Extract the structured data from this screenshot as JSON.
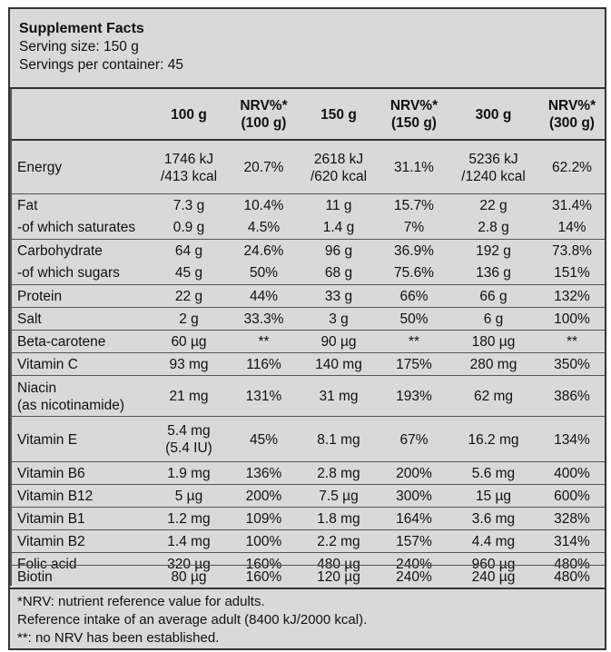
{
  "header": {
    "title": "Supplement Facts",
    "serving_size": "Serving size: 150 g",
    "servings_per_container": "Servings per container: 45"
  },
  "columns": [
    [
      "100 g"
    ],
    [
      "NRV%*",
      "(100 g)"
    ],
    [
      "150 g"
    ],
    [
      "NRV%*",
      "(150 g)"
    ],
    [
      "300 g"
    ],
    [
      "NRV%*",
      "(300 g)"
    ]
  ],
  "rows": [
    {
      "name": [
        "Energy"
      ],
      "values": [
        [
          "1746 kJ",
          "/413 kcal"
        ],
        [
          "20.7%"
        ],
        [
          "2618 kJ",
          "/620 kcal"
        ],
        [
          "31.1%"
        ],
        [
          "5236 kJ",
          "/1240 kcal"
        ],
        [
          "62.2%"
        ]
      ]
    },
    {
      "name": [
        "Fat"
      ],
      "values": [
        [
          "7.3 g"
        ],
        [
          "10.4%"
        ],
        [
          "11 g"
        ],
        [
          "15.7%"
        ],
        [
          "22 g"
        ],
        [
          "31.4%"
        ]
      ]
    },
    {
      "name": [
        "-of which saturates"
      ],
      "values": [
        [
          "0.9 g"
        ],
        [
          "4.5%"
        ],
        [
          "1.4 g"
        ],
        [
          "7%"
        ],
        [
          "2.8 g"
        ],
        [
          "14%"
        ]
      ]
    },
    {
      "name": [
        "Carbohydrate"
      ],
      "values": [
        [
          "64 g"
        ],
        [
          "24.6%"
        ],
        [
          "96 g"
        ],
        [
          "36.9%"
        ],
        [
          "192 g"
        ],
        [
          "73.8%"
        ]
      ]
    },
    {
      "name": [
        "-of which sugars"
      ],
      "values": [
        [
          "45 g"
        ],
        [
          "50%"
        ],
        [
          "68 g"
        ],
        [
          "75.6%"
        ],
        [
          "136 g"
        ],
        [
          "151%"
        ]
      ]
    },
    {
      "name": [
        "Protein"
      ],
      "values": [
        [
          "22 g"
        ],
        [
          "44%"
        ],
        [
          "33 g"
        ],
        [
          "66%"
        ],
        [
          "66 g"
        ],
        [
          "132%"
        ]
      ]
    },
    {
      "name": [
        "Salt"
      ],
      "values": [
        [
          "2 g"
        ],
        [
          "33.3%"
        ],
        [
          "3 g"
        ],
        [
          "50%"
        ],
        [
          "6 g"
        ],
        [
          "100%"
        ]
      ]
    },
    {
      "name": [
        "Beta-carotene"
      ],
      "values": [
        [
          "60 µg"
        ],
        [
          "**"
        ],
        [
          "90 µg"
        ],
        [
          "**"
        ],
        [
          "180 µg"
        ],
        [
          "**"
        ]
      ]
    },
    {
      "name": [
        "Vitamin C"
      ],
      "values": [
        [
          "93 mg"
        ],
        [
          "116%"
        ],
        [
          "140 mg"
        ],
        [
          "175%"
        ],
        [
          "280 mg"
        ],
        [
          "350%"
        ]
      ]
    },
    {
      "name": [
        "Niacin",
        "(as nicotinamide)"
      ],
      "values": [
        [
          "21 mg"
        ],
        [
          "131%"
        ],
        [
          "31 mg"
        ],
        [
          "193%"
        ],
        [
          "62 mg"
        ],
        [
          "386%"
        ]
      ]
    },
    {
      "name": [
        "Vitamin E"
      ],
      "values": [
        [
          "5.4 mg",
          "(5.4 IU)"
        ],
        [
          "45%"
        ],
        [
          "8.1 mg"
        ],
        [
          "67%"
        ],
        [
          "16.2 mg"
        ],
        [
          "134%"
        ]
      ]
    },
    {
      "name": [
        "Vitamin B6"
      ],
      "values": [
        [
          "1.9 mg"
        ],
        [
          "136%"
        ],
        [
          "2.8 mg"
        ],
        [
          "200%"
        ],
        [
          "5.6 mg"
        ],
        [
          "400%"
        ]
      ]
    },
    {
      "name": [
        "Vitamin B12"
      ],
      "values": [
        [
          "5 µg"
        ],
        [
          "200%"
        ],
        [
          "7.5 µg"
        ],
        [
          "300%"
        ],
        [
          "15 µg"
        ],
        [
          "600%"
        ]
      ]
    },
    {
      "name": [
        "Vitamin B1"
      ],
      "values": [
        [
          "1.2 mg"
        ],
        [
          "109%"
        ],
        [
          "1.8 mg"
        ],
        [
          "164%"
        ],
        [
          "3.6 mg"
        ],
        [
          "328%"
        ]
      ]
    },
    {
      "name": [
        "Vitamin B2"
      ],
      "values": [
        [
          "1.4 mg"
        ],
        [
          "100%"
        ],
        [
          "2.2 mg"
        ],
        [
          "157%"
        ],
        [
          "4.4 mg"
        ],
        [
          "314%"
        ]
      ]
    },
    {
      "name": [
        "Folic acid"
      ],
      "values": [
        [
          "320 µg"
        ],
        [
          "160%"
        ],
        [
          "480 µg"
        ],
        [
          "240%"
        ],
        [
          "960 µg"
        ],
        [
          "480%"
        ]
      ]
    },
    {
      "name": [
        "Biotin"
      ],
      "values": [
        [
          "80 µg"
        ],
        [
          "160%"
        ],
        [
          "120 µg"
        ],
        [
          "240%"
        ],
        [
          "240 µg"
        ],
        [
          "480%"
        ]
      ]
    }
  ],
  "footer": [
    "*NRV: nutrient reference value for adults.",
    "Reference intake of an average adult (8400 kJ/2000 kcal).",
    "**: no NRV has been established."
  ]
}
